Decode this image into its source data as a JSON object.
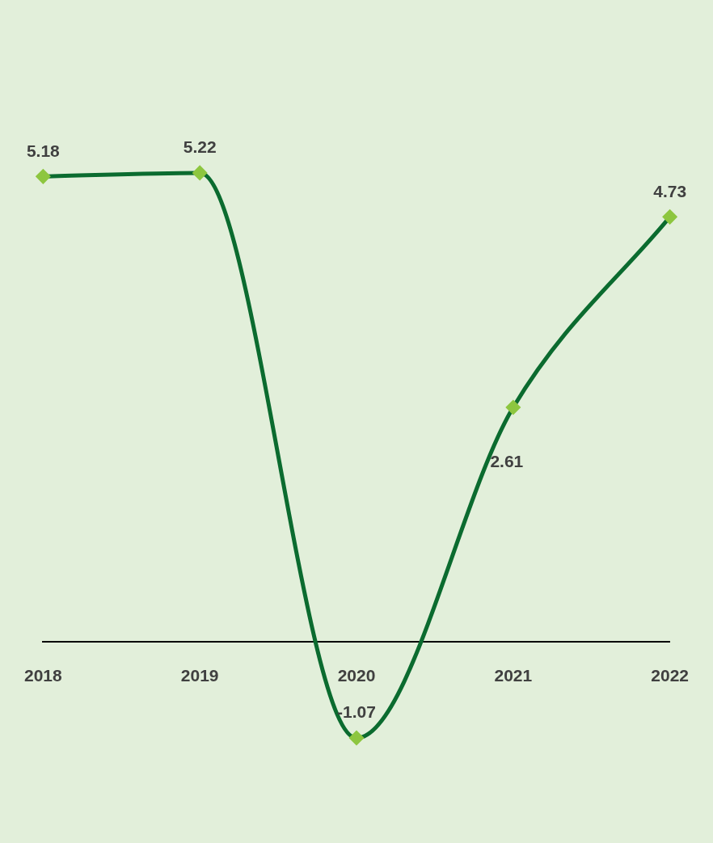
{
  "chart_data": {
    "type": "line",
    "categories": [
      "2018",
      "2019",
      "2020",
      "2021",
      "2022"
    ],
    "series": [
      {
        "color": "#0b6b2f",
        "values": [
          5.18,
          5.22,
          -1.07,
          2.61,
          4.73
        ]
      }
    ],
    "data_labels": true,
    "marker": "diamond",
    "line_style": "solid",
    "grid": false,
    "legend": false,
    "tick_labels": "x"
  }
}
